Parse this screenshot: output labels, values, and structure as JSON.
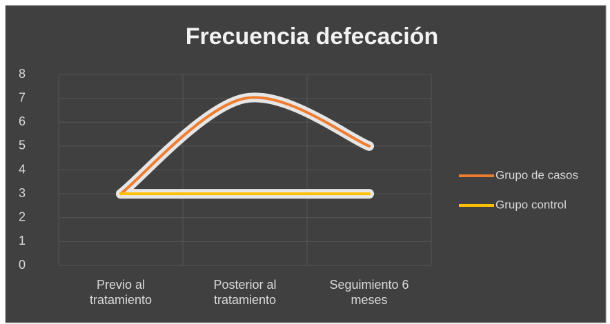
{
  "chart_data": {
    "type": "line",
    "title": "Frecuencia defecación",
    "categories": [
      "Previo al tratamiento",
      "Posterior al tratamiento",
      "Seguimiento 6 meses"
    ],
    "series": [
      {
        "name": "Grupo de casos",
        "color": "#ed7d31",
        "values": [
          3,
          7,
          5
        ]
      },
      {
        "name": "Grupo control",
        "color": "#ffc000",
        "values": [
          3,
          3,
          3
        ]
      }
    ],
    "ylim": [
      0,
      8
    ],
    "yticks": [
      0,
      1,
      2,
      3,
      4,
      5,
      6,
      7,
      8
    ],
    "grid": true,
    "smooth": true,
    "legend": "right"
  }
}
